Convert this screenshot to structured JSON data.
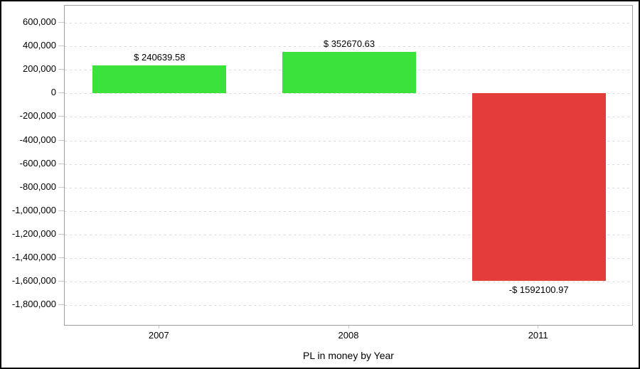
{
  "chart_data": {
    "type": "bar",
    "title": "PL in money by Year",
    "categories": [
      "2007",
      "2008",
      "2011"
    ],
    "values": [
      240639.58,
      352670.63,
      -1592100.97
    ],
    "bar_labels": [
      "$ 240639.58",
      "$ 352670.63",
      "-$ 1592100.97"
    ],
    "series_colors": [
      "#3CE23C",
      "#3CE23C",
      "#E43B3B"
    ],
    "yticks": [
      {
        "value": 600000,
        "label": "600,000"
      },
      {
        "value": 400000,
        "label": "400,000"
      },
      {
        "value": 200000,
        "label": "200,000"
      },
      {
        "value": 0,
        "label": "0"
      },
      {
        "value": -200000,
        "label": "-200,000"
      },
      {
        "value": -400000,
        "label": "-400,000"
      },
      {
        "value": -600000,
        "label": "-600,000"
      },
      {
        "value": -800000,
        "label": "-800,000"
      },
      {
        "value": -1000000,
        "label": "-1,000,000"
      },
      {
        "value": -1200000,
        "label": "-1,200,000"
      },
      {
        "value": -1400000,
        "label": "-1,400,000"
      },
      {
        "value": -1600000,
        "label": "-1,600,000"
      },
      {
        "value": -1800000,
        "label": "-1,800,000"
      }
    ],
    "ylim": [
      -1980000,
      745000
    ],
    "xlabel": "PL in money by Year",
    "ylabel": "",
    "grid": "horizontal-dashed",
    "legend": "none",
    "colors": {
      "positive": "#3CE23C",
      "negative": "#E43B3B",
      "gridline": "#DCDCDC",
      "plot_border": "#A0A0A0",
      "tick": "#C8C8C8",
      "text": "#000000",
      "background": "#FFFFFF",
      "frame_border": "#000000"
    }
  }
}
